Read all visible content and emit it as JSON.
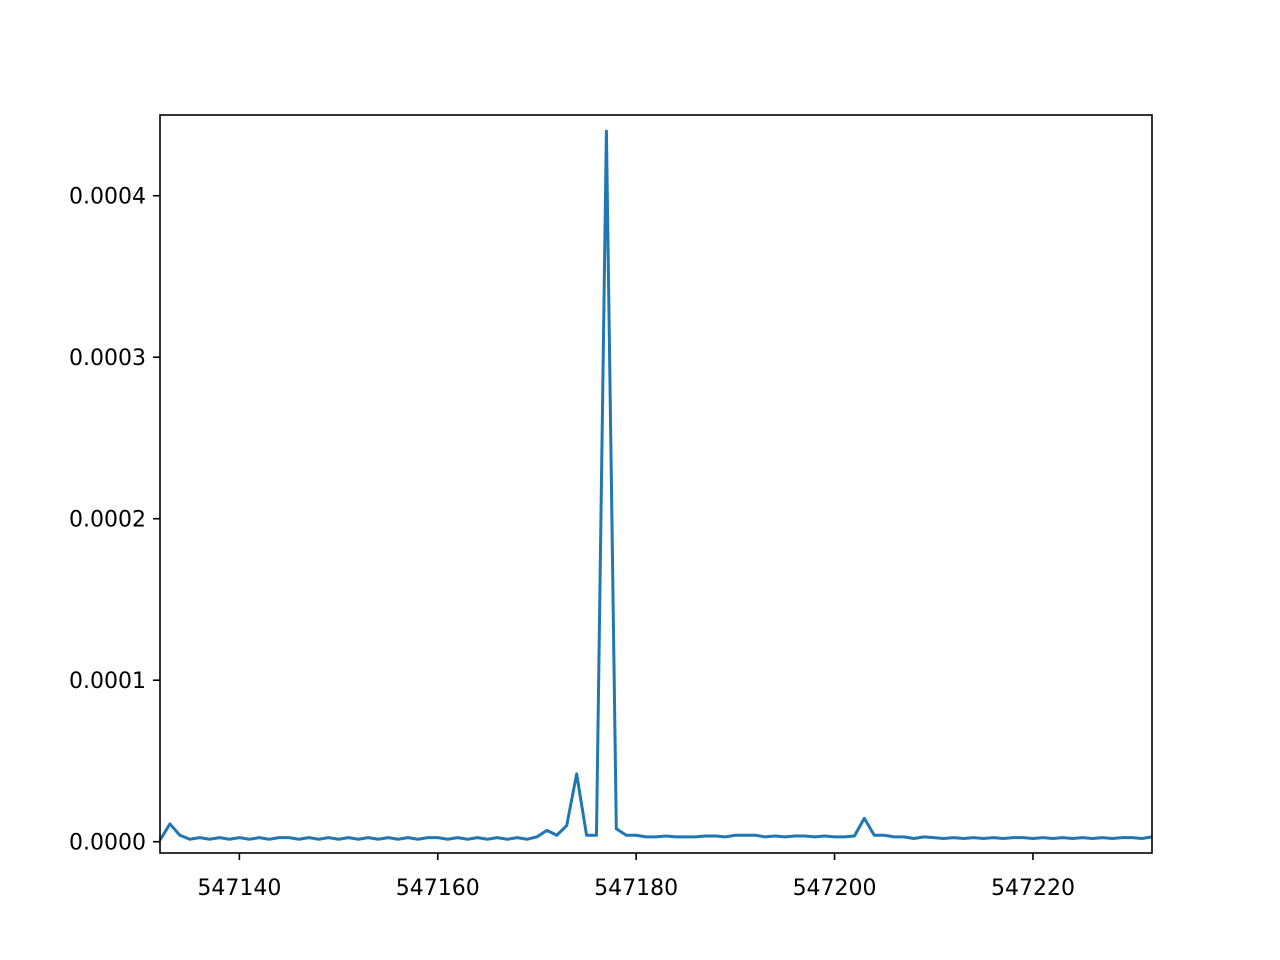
{
  "chart_data": {
    "type": "line",
    "title": "",
    "xlabel": "",
    "ylabel": "",
    "xlim": [
      547132,
      547232
    ],
    "ylim": [
      -7e-06,
      0.00045
    ],
    "grid": false,
    "x_ticks": [
      547140,
      547160,
      547180,
      547200,
      547220
    ],
    "x_tick_labels": [
      "547140",
      "547160",
      "547180",
      "547200",
      "547220"
    ],
    "y_ticks": [
      0,
      0.0001,
      0.0002,
      0.0003,
      0.0004
    ],
    "y_tick_labels": [
      "0.0000",
      "0.0001",
      "0.0002",
      "0.0003",
      "0.0004"
    ],
    "series": [
      {
        "color": "#1f77b4",
        "x": [
          547132,
          547133,
          547134,
          547135,
          547136,
          547137,
          547138,
          547139,
          547140,
          547141,
          547142,
          547143,
          547144,
          547145,
          547146,
          547147,
          547148,
          547149,
          547150,
          547151,
          547152,
          547153,
          547154,
          547155,
          547156,
          547157,
          547158,
          547159,
          547160,
          547161,
          547162,
          547163,
          547164,
          547165,
          547166,
          547167,
          547168,
          547169,
          547170,
          547171,
          547172,
          547173,
          547174,
          547175,
          547176,
          547177,
          547178,
          547179,
          547180,
          547181,
          547182,
          547183,
          547184,
          547185,
          547186,
          547187,
          547188,
          547189,
          547190,
          547191,
          547192,
          547193,
          547194,
          547195,
          547196,
          547197,
          547198,
          547199,
          547200,
          547201,
          547202,
          547203,
          547204,
          547205,
          547206,
          547207,
          547208,
          547209,
          547210,
          547211,
          547212,
          547213,
          547214,
          547215,
          547216,
          547217,
          547218,
          547219,
          547220,
          547221,
          547222,
          547223,
          547224,
          547225,
          547226,
          547227,
          547228,
          547229,
          547230,
          547231,
          547232
        ],
        "y": [
          1e-06,
          1.1e-05,
          4e-06,
          1.5e-06,
          2.5e-06,
          1.5e-06,
          2.5e-06,
          1.5e-06,
          2.5e-06,
          1.5e-06,
          2.5e-06,
          1.5e-06,
          2.5e-06,
          2.5e-06,
          1.5e-06,
          2.5e-06,
          1.5e-06,
          2.5e-06,
          1.5e-06,
          2.5e-06,
          1.5e-06,
          2.5e-06,
          1.5e-06,
          2.5e-06,
          1.5e-06,
          2.5e-06,
          1.5e-06,
          2.5e-06,
          2.5e-06,
          1.5e-06,
          2.5e-06,
          1.5e-06,
          2.5e-06,
          1.5e-06,
          2.5e-06,
          1.5e-06,
          2.5e-06,
          1.5e-06,
          3e-06,
          7e-06,
          4e-06,
          1e-05,
          4.2e-05,
          4e-06,
          4e-06,
          0.00044,
          8e-06,
          4e-06,
          4e-06,
          3e-06,
          3e-06,
          3.5e-06,
          3e-06,
          3e-06,
          3e-06,
          3.5e-06,
          3.5e-06,
          3e-06,
          4e-06,
          4e-06,
          4e-06,
          3e-06,
          3.5e-06,
          3e-06,
          3.5e-06,
          3.5e-06,
          3e-06,
          3.5e-06,
          3e-06,
          3e-06,
          3.5e-06,
          1.45e-05,
          4e-06,
          4e-06,
          3e-06,
          3e-06,
          2e-06,
          3e-06,
          2.5e-06,
          2e-06,
          2.5e-06,
          2e-06,
          2.5e-06,
          2e-06,
          2.5e-06,
          2e-06,
          2.5e-06,
          2.5e-06,
          2e-06,
          2.5e-06,
          2e-06,
          2.5e-06,
          2e-06,
          2.5e-06,
          2e-06,
          2.5e-06,
          2e-06,
          2.5e-06,
          2.5e-06,
          2e-06,
          3e-06
        ]
      }
    ]
  }
}
